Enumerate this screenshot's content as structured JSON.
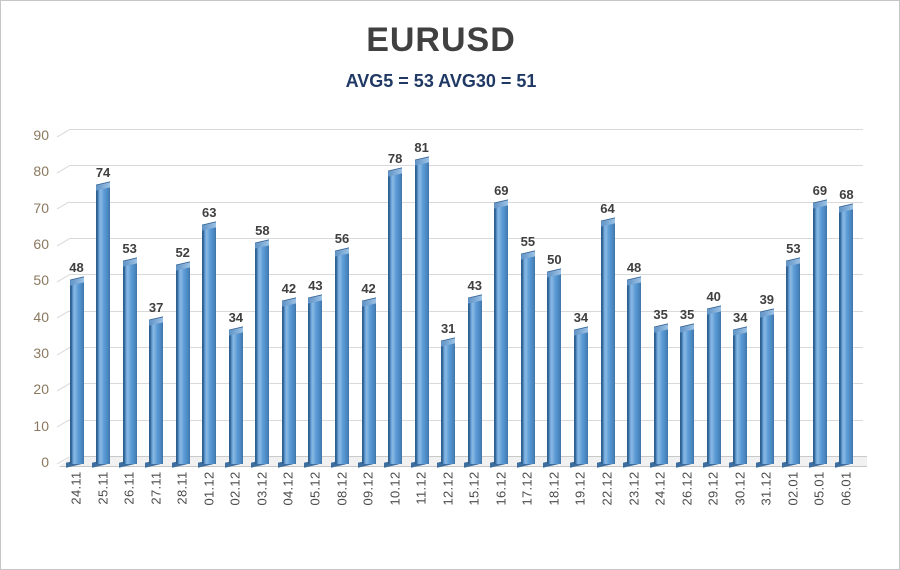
{
  "chart_data": {
    "type": "bar",
    "title": "EURUSD",
    "subtitle": "AVG5 = 53 AVG30 = 51",
    "categories": [
      "24.11",
      "25.11",
      "26.11",
      "27.11",
      "28.11",
      "01.12",
      "02.12",
      "03.12",
      "04.12",
      "05.12",
      "08.12",
      "09.12",
      "10.12",
      "11.12",
      "12.12",
      "15.12",
      "16.12",
      "17.12",
      "18.12",
      "19.12",
      "22.12",
      "23.12",
      "24.12",
      "26.12",
      "29.12",
      "30.12",
      "31.12",
      "02.01",
      "05.01",
      "06.01"
    ],
    "values": [
      48,
      74,
      53,
      37,
      52,
      63,
      34,
      58,
      42,
      43,
      56,
      42,
      78,
      81,
      31,
      43,
      69,
      55,
      50,
      34,
      64,
      48,
      35,
      35,
      40,
      34,
      39,
      53,
      69,
      68
    ],
    "xlabel": "",
    "ylabel": "",
    "ylim": [
      0,
      90
    ],
    "y_ticks": [
      0,
      10,
      20,
      30,
      40,
      50,
      60,
      70,
      80,
      90
    ],
    "grid": true,
    "legend": false,
    "data_labels": true,
    "bar_style": "3d-column",
    "colors": {
      "bar_face": "#5b9bd5",
      "bar_edge": "#2e6190",
      "bar_highlight": "#8ab9e4",
      "bar_cap": "#9dc3e6",
      "grid": "#d9d9d9",
      "floor": "#f1f1f1",
      "title": "#404040",
      "subtitle": "#1f3864",
      "value_label": "#3f3f3f",
      "y_tick_label": "#8a795f",
      "x_tick_label": "#4b4b4b"
    }
  }
}
